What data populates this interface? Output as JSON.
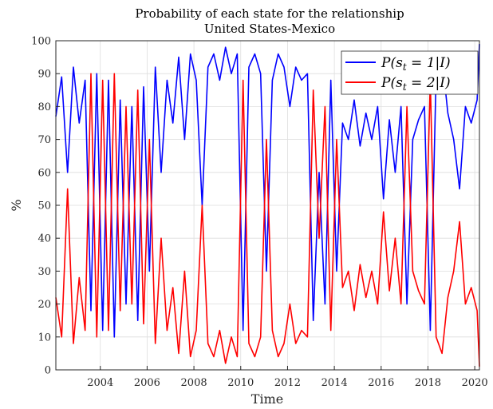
{
  "chart_data": {
    "type": "line",
    "title": "Probability of each state for the relationship",
    "subtitle": "United States-Mexico",
    "xlabel": "Time",
    "ylabel": "%",
    "xlim": [
      2002.1,
      2020.2
    ],
    "ylim": [
      0,
      100
    ],
    "x_ticks": [
      2004,
      2006,
      2008,
      2010,
      2012,
      2014,
      2016,
      2018,
      2020
    ],
    "y_ticks": [
      0,
      10,
      20,
      30,
      40,
      50,
      60,
      70,
      80,
      90,
      100
    ],
    "grid": true,
    "legend_position": "top-right",
    "x": [
      2002.1,
      2002.35,
      2002.6,
      2002.85,
      2003.1,
      2003.35,
      2003.6,
      2003.85,
      2004.1,
      2004.35,
      2004.6,
      2004.85,
      2005.1,
      2005.35,
      2005.6,
      2005.85,
      2006.1,
      2006.35,
      2006.6,
      2006.85,
      2007.1,
      2007.35,
      2007.6,
      2007.85,
      2008.1,
      2008.35,
      2008.6,
      2008.85,
      2009.1,
      2009.35,
      2009.6,
      2009.85,
      2010.1,
      2010.35,
      2010.6,
      2010.85,
      2011.1,
      2011.35,
      2011.6,
      2011.85,
      2012.1,
      2012.35,
      2012.6,
      2012.85,
      2013.1,
      2013.35,
      2013.6,
      2013.85,
      2014.1,
      2014.35,
      2014.6,
      2014.85,
      2015.1,
      2015.35,
      2015.6,
      2015.85,
      2016.1,
      2016.35,
      2016.6,
      2016.85,
      2017.1,
      2017.35,
      2017.6,
      2017.85,
      2018.1,
      2018.35,
      2018.6,
      2018.85,
      2019.1,
      2019.35,
      2019.6,
      2019.85,
      2020.1,
      2020.2
    ],
    "series": [
      {
        "name": "P(s_t = 1|I)",
        "color": "#0000ff",
        "values": [
          77,
          89,
          60,
          92,
          75,
          88,
          18,
          90,
          12,
          88,
          10,
          82,
          20,
          80,
          15,
          86,
          30,
          92,
          60,
          88,
          75,
          95,
          70,
          96,
          88,
          50,
          92,
          96,
          88,
          98,
          90,
          96,
          12,
          92,
          96,
          90,
          30,
          88,
          96,
          92,
          80,
          92,
          88,
          90,
          15,
          60,
          20,
          88,
          30,
          75,
          70,
          82,
          68,
          78,
          70,
          80,
          52,
          76,
          60,
          80,
          20,
          70,
          76,
          80,
          12,
          90,
          95,
          78,
          70,
          55,
          80,
          75,
          82,
          99
        ]
      },
      {
        "name": "P(s_t = 2|I)",
        "color": "#ff0000",
        "values": [
          22,
          10,
          55,
          8,
          28,
          12,
          90,
          10,
          88,
          12,
          90,
          18,
          80,
          20,
          85,
          14,
          70,
          8,
          40,
          12,
          25,
          5,
          30,
          4,
          12,
          50,
          8,
          4,
          12,
          2,
          10,
          4,
          88,
          8,
          4,
          10,
          70,
          12,
          4,
          8,
          20,
          8,
          12,
          10,
          85,
          40,
          80,
          12,
          70,
          25,
          30,
          18,
          32,
          22,
          30,
          20,
          48,
          24,
          40,
          20,
          80,
          30,
          24,
          20,
          88,
          10,
          5,
          22,
          30,
          45,
          20,
          25,
          18,
          1
        ]
      }
    ]
  },
  "legend": {
    "items": [
      {
        "label_prefix": "P(",
        "label_var": "s",
        "label_sub": "t",
        "label_suffix": " = 1|I)"
      },
      {
        "label_prefix": "P(",
        "label_var": "s",
        "label_sub": "t",
        "label_suffix": " = 2|I)"
      }
    ]
  }
}
